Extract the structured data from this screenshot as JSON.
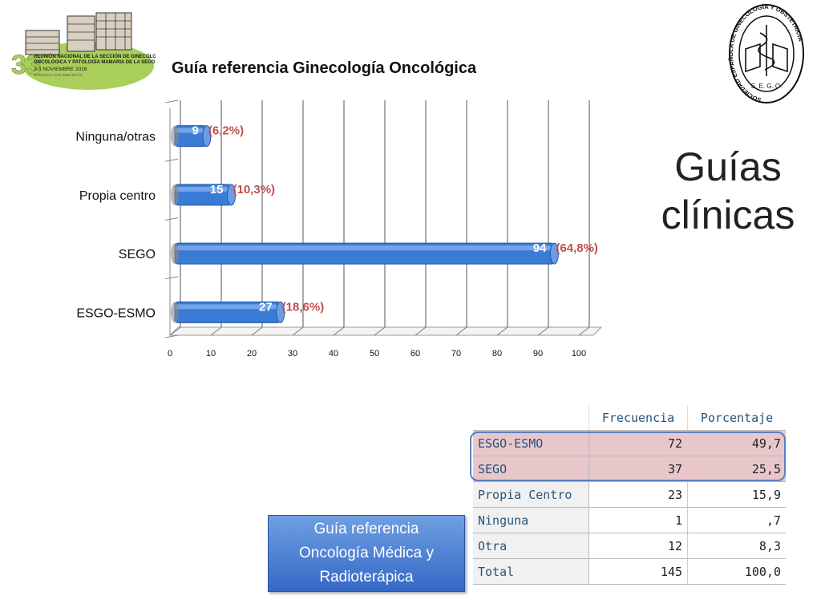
{
  "header": {
    "chart_title": "Guía referencia Ginecología Oncológica",
    "main_title_line1": "Guías",
    "main_title_line2": "clínicas"
  },
  "logo_left": {
    "lines": [
      "REUNIÓN NACIONAL DE LA SECCIÓN DE GINECOLOGÍA",
      "ONCOLÓGICA Y PATOLOGÍA MAMARIA DE LA SEGO",
      "3-5 NOVIEMBRE 2016",
      "DONOSTIA-SAN SEBASTIÁN"
    ],
    "number": "33"
  },
  "logo_right": {
    "ring_text": "SOCIEDAD ESPAÑOLA DE GINECOLOGÍA Y OBSTETRICIA",
    "abbr": "S. E. G. O."
  },
  "chart_data": {
    "type": "bar",
    "orientation": "horizontal",
    "title": "Guía referencia Ginecología Oncológica",
    "categories": [
      "Ninguna/otras",
      "Propia centro",
      "SEGO",
      "ESGO-ESMO"
    ],
    "values": [
      9,
      15,
      94,
      27
    ],
    "percent_labels": [
      "(6,2%)",
      "(10,3%)",
      "(64,8%)",
      "(18,6%)"
    ],
    "xlim": [
      0,
      100
    ],
    "xticks": [
      0,
      10,
      20,
      30,
      40,
      50,
      60,
      70,
      80,
      90,
      100
    ],
    "grid": true,
    "bar_color": "#3a7bd5"
  },
  "callout": {
    "text_line1": "Guía referencia",
    "text_line2": "Oncología Médica y",
    "text_line3": "Radioterápica"
  },
  "table": {
    "headers": [
      "Frecuencia",
      "Porcentaje"
    ],
    "rows": [
      {
        "label": "ESGO-ESMO",
        "freq": "72",
        "pct": "49,7"
      },
      {
        "label": "SEGO",
        "freq": "37",
        "pct": "25,5"
      },
      {
        "label": "Propia Centro",
        "freq": "23",
        "pct": "15,9"
      },
      {
        "label": "Ninguna",
        "freq": "1",
        "pct": ",7"
      },
      {
        "label": "Otra",
        "freq": "12",
        "pct": "8,3"
      },
      {
        "label": "Total",
        "freq": "145",
        "pct": "100,0"
      }
    ]
  }
}
